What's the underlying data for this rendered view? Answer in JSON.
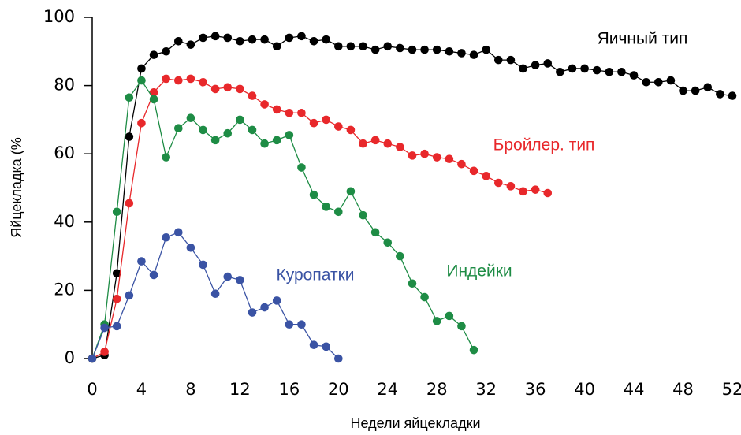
{
  "chart_data": {
    "type": "line",
    "ylabel": "Яйцекладка (%",
    "xlabel": "Недели яйцекладки",
    "x": [
      0,
      1,
      2,
      3,
      4,
      5,
      6,
      7,
      8,
      9,
      10,
      11,
      12,
      13,
      14,
      15,
      16,
      17,
      18,
      19,
      20,
      21,
      22,
      23,
      24,
      25,
      26,
      27,
      28,
      29,
      30,
      31,
      32,
      33,
      34,
      35,
      36,
      37,
      38,
      39,
      40,
      41,
      42,
      43,
      44,
      45,
      46,
      47,
      48,
      49,
      50,
      51,
      52
    ],
    "xlim": [
      0,
      52
    ],
    "xticks": [
      0,
      4,
      8,
      12,
      16,
      20,
      24,
      28,
      32,
      36,
      40,
      44,
      48,
      52
    ],
    "ylim": [
      0,
      100
    ],
    "yticks": [
      0,
      20,
      40,
      60,
      80,
      100
    ],
    "series": [
      {
        "name": "Яичный тип",
        "color": "#000000",
        "values": [
          0,
          1,
          25,
          65,
          85,
          89,
          90,
          93,
          92,
          94,
          94.5,
          94,
          93,
          93.5,
          93.5,
          91.5,
          94,
          94.5,
          93,
          93.5,
          91.5,
          91.5,
          91.5,
          90.5,
          91.5,
          91,
          90.5,
          90.5,
          90.5,
          90,
          89.5,
          89,
          90.5,
          87.5,
          87.5,
          85,
          86,
          86.5,
          84,
          85,
          85,
          84.5,
          84,
          84,
          83,
          81,
          81,
          81.5,
          78.5,
          78.5,
          79.5,
          77.5,
          77
        ]
      },
      {
        "name": "Бройлер. тип",
        "color": "#e8282b",
        "values": [
          0,
          2,
          17.5,
          45.5,
          69,
          78,
          82,
          81.5,
          82,
          81,
          79,
          79.5,
          79,
          77,
          74.5,
          73,
          72,
          72,
          69,
          70,
          68,
          67,
          63,
          64,
          63,
          62,
          59.5,
          60,
          59,
          58.5,
          57,
          55,
          53.5,
          51.5,
          50.5,
          49,
          49.5,
          48.5,
          null,
          null,
          null,
          null,
          null,
          null,
          null,
          null,
          null,
          null,
          null,
          null,
          null,
          null,
          null
        ]
      },
      {
        "name": "Индейки",
        "color": "#1e8c45",
        "values": [
          0,
          10,
          43,
          76.5,
          81.5,
          76,
          59,
          67.5,
          70.5,
          67,
          64,
          66,
          70,
          67,
          63,
          64,
          65.5,
          56,
          48,
          44.5,
          43,
          49,
          42,
          37,
          34,
          30,
          22,
          18,
          11,
          12.5,
          9.5,
          2.5,
          null,
          null,
          null,
          null,
          null,
          null,
          null,
          null,
          null,
          null,
          null,
          null,
          null,
          null,
          null,
          null,
          null,
          null,
          null,
          null,
          null
        ]
      },
      {
        "name": "Куропатки",
        "color": "#3a53a4",
        "values": [
          0,
          9,
          9.5,
          18.5,
          28.5,
          24.5,
          35.5,
          37,
          32.5,
          27.5,
          19,
          24,
          23,
          13.5,
          15,
          17,
          10,
          10,
          4,
          3.5,
          0,
          null,
          null,
          null,
          null,
          null,
          null,
          null,
          null,
          null,
          null,
          null,
          null,
          null,
          null,
          null,
          null,
          null,
          null,
          null,
          null,
          null,
          null,
          null,
          null,
          null,
          null,
          null,
          null,
          null,
          null,
          null,
          null
        ]
      }
    ]
  }
}
